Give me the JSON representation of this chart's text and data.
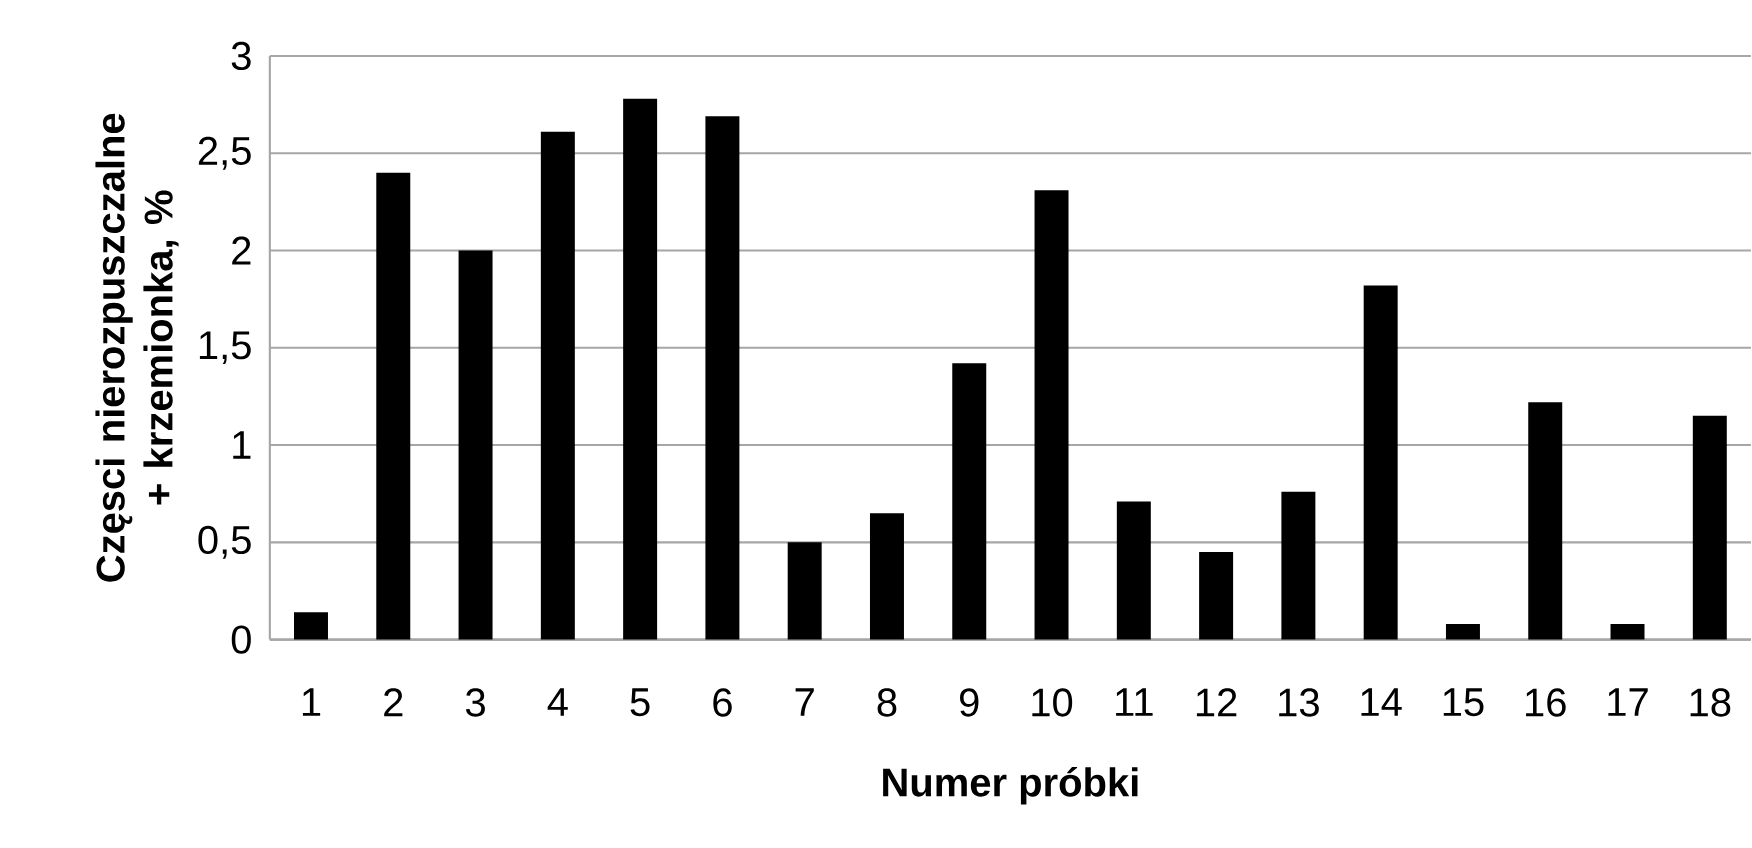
{
  "chart_data": {
    "type": "bar",
    "xlabel": "Numer próbki",
    "ylabel": "Częsci nierozpuszczalne + krzemionka, %",
    "categories": [
      "1",
      "2",
      "3",
      "4",
      "5",
      "6",
      "7",
      "8",
      "9",
      "10",
      "11",
      "12",
      "13",
      "14",
      "15",
      "16",
      "17",
      "18"
    ],
    "values": [
      0.14,
      2.4,
      2.0,
      2.61,
      2.78,
      2.69,
      0.5,
      0.65,
      1.42,
      2.31,
      0.71,
      0.45,
      0.76,
      1.82,
      0.08,
      1.22,
      0.08,
      1.15
    ],
    "color": "#000000",
    "ylim": [
      0,
      3
    ],
    "yticks": [
      0,
      {
        "value": 0.5,
        "label": "0,5"
      },
      1,
      {
        "value": 1.5,
        "label": "1,5"
      },
      2,
      {
        "value": 2.5,
        "label": "2,5"
      },
      3
    ],
    "grid": "y"
  }
}
